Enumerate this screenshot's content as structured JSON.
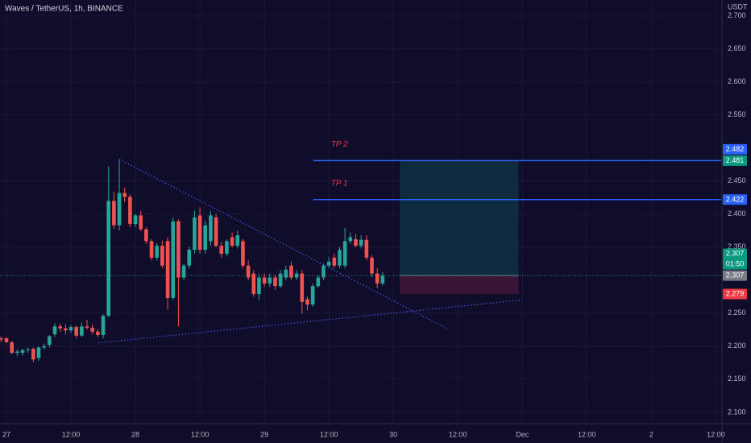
{
  "chart_data": {
    "type": "candlestick",
    "title": "Waves / TetherUS, 1h, BINANCE",
    "currency": "USDT",
    "up_color": "#26a69a",
    "down_color": "#ef5350",
    "grid": true,
    "xlim": [
      -1.2,
      133
    ],
    "ylim": [
      2.084,
      2.724
    ],
    "xticks": [
      {
        "value": 0,
        "label": "27"
      },
      {
        "value": 12,
        "label": "12:00"
      },
      {
        "value": 24,
        "label": "28"
      },
      {
        "value": 36,
        "label": "12:00"
      },
      {
        "value": 48,
        "label": "29"
      },
      {
        "value": 60,
        "label": "12:00"
      },
      {
        "value": 72,
        "label": "30"
      },
      {
        "value": 84,
        "label": "12:00"
      },
      {
        "value": 96,
        "label": "Dec"
      },
      {
        "value": 108,
        "label": "12:00"
      },
      {
        "value": 120,
        "label": "2"
      },
      {
        "value": 132,
        "label": "12:00"
      }
    ],
    "yticks": [
      {
        "value": 2.1,
        "label": "2.100"
      },
      {
        "value": 2.15,
        "label": "2.150"
      },
      {
        "value": 2.2,
        "label": "2.200"
      },
      {
        "value": 2.25,
        "label": "2.250"
      },
      {
        "value": 2.35,
        "label": "2.350"
      },
      {
        "value": 2.4,
        "label": "2.400"
      },
      {
        "value": 2.45,
        "label": "2.450"
      },
      {
        "value": 2.55,
        "label": "2.550"
      },
      {
        "value": 2.6,
        "label": "2.600"
      },
      {
        "value": 2.65,
        "label": "2.650"
      },
      {
        "value": 2.7,
        "label": "2.700"
      }
    ],
    "x": [
      -1,
      0,
      1,
      2,
      3,
      4,
      5,
      6,
      7,
      8,
      9,
      10,
      11,
      12,
      13,
      14,
      15,
      16,
      17,
      18,
      19,
      20,
      21,
      22,
      23,
      24,
      25,
      26,
      27,
      28,
      29,
      30,
      31,
      32,
      33,
      34,
      35,
      36,
      37,
      38,
      39,
      40,
      41,
      42,
      43,
      44,
      45,
      46,
      47,
      48,
      49,
      50,
      51,
      52,
      53,
      54,
      55,
      56,
      57,
      58,
      59,
      60,
      61,
      62,
      63,
      64,
      65,
      66,
      67,
      68,
      69,
      70
    ],
    "open": [
      2.212,
      2.212,
      2.206,
      2.19,
      2.19,
      2.194,
      2.196,
      2.182,
      2.198,
      2.202,
      2.218,
      2.23,
      2.227,
      2.224,
      2.229,
      2.216,
      2.23,
      2.228,
      2.222,
      2.217,
      2.246,
      2.42,
      2.383,
      2.432,
      2.426,
      2.385,
      2.398,
      2.377,
      2.359,
      2.334,
      2.352,
      2.359,
      2.273,
      2.389,
      2.304,
      2.322,
      2.346,
      2.398,
      2.346,
      2.359,
      2.395,
      2.352,
      2.34,
      2.365,
      2.352,
      2.359,
      2.322,
      2.31,
      2.279,
      2.304,
      2.295,
      2.304,
      2.291,
      2.304,
      2.322,
      2.304,
      2.31,
      2.271,
      2.263,
      2.291,
      2.304,
      2.322,
      2.334,
      2.322,
      2.322,
      2.359,
      2.362,
      2.352,
      2.361,
      2.334,
      2.31,
      2.295
    ],
    "high": [
      2.215,
      2.214,
      2.208,
      2.195,
      2.196,
      2.198,
      2.198,
      2.2,
      2.204,
      2.217,
      2.235,
      2.234,
      2.233,
      2.232,
      2.231,
      2.236,
      2.24,
      2.233,
      2.226,
      2.248,
      2.472,
      2.434,
      2.483,
      2.44,
      2.43,
      2.4,
      2.405,
      2.38,
      2.362,
      2.356,
      2.36,
      2.365,
      2.395,
      2.392,
      2.325,
      2.35,
      2.405,
      2.41,
      2.39,
      2.405,
      2.4,
      2.358,
      2.362,
      2.372,
      2.375,
      2.362,
      2.33,
      2.315,
      2.31,
      2.31,
      2.31,
      2.308,
      2.315,
      2.322,
      2.328,
      2.315,
      2.315,
      2.275,
      2.295,
      2.308,
      2.325,
      2.335,
      2.34,
      2.35,
      2.379,
      2.372,
      2.37,
      2.368,
      2.368,
      2.338,
      2.318,
      2.312
    ],
    "low": [
      2.206,
      2.205,
      2.188,
      2.185,
      2.186,
      2.19,
      2.176,
      2.178,
      2.195,
      2.198,
      2.214,
      2.222,
      2.218,
      2.22,
      2.212,
      2.214,
      2.225,
      2.218,
      2.214,
      2.212,
      2.244,
      2.378,
      2.375,
      2.418,
      2.38,
      2.38,
      2.374,
      2.355,
      2.33,
      2.33,
      2.318,
      2.255,
      2.27,
      2.23,
      2.3,
      2.318,
      2.34,
      2.34,
      2.34,
      2.352,
      2.35,
      2.334,
      2.336,
      2.35,
      2.348,
      2.318,
      2.3,
      2.275,
      2.27,
      2.29,
      2.29,
      2.285,
      2.288,
      2.3,
      2.3,
      2.3,
      2.249,
      2.255,
      2.26,
      2.288,
      2.3,
      2.318,
      2.318,
      2.318,
      2.318,
      2.355,
      2.35,
      2.348,
      2.33,
      2.305,
      2.288,
      2.292
    ],
    "close": [
      2.21,
      2.206,
      2.19,
      2.192,
      2.194,
      2.195,
      2.18,
      2.198,
      2.2,
      2.215,
      2.23,
      2.227,
      2.224,
      2.229,
      2.216,
      2.23,
      2.228,
      2.222,
      2.217,
      2.246,
      2.42,
      2.383,
      2.432,
      2.426,
      2.385,
      2.398,
      2.377,
      2.359,
      2.334,
      2.352,
      2.322,
      2.273,
      2.389,
      2.304,
      2.322,
      2.346,
      2.395,
      2.346,
      2.383,
      2.398,
      2.352,
      2.34,
      2.359,
      2.352,
      2.368,
      2.322,
      2.304,
      2.279,
      2.304,
      2.295,
      2.304,
      2.291,
      2.31,
      2.316,
      2.304,
      2.31,
      2.267,
      2.263,
      2.291,
      2.304,
      2.322,
      2.328,
      2.322,
      2.346,
      2.359,
      2.365,
      2.352,
      2.361,
      2.334,
      2.31,
      2.295,
      2.307
    ],
    "trendlines": [
      {
        "x": [
          21,
          82
        ],
        "y": [
          2.483,
          2.2268
        ],
        "color": "#3f51d9"
      },
      {
        "x": [
          17.1,
          95.85
        ],
        "y": [
          2.205,
          2.27
        ],
        "color": "#3f51d9"
      }
    ],
    "tp_lines": [
      {
        "label": "TP 2",
        "value": 2.481,
        "x_start": 57.1,
        "color": "#2962ff",
        "text_color": "#f23645"
      },
      {
        "label": "TP 1",
        "value": 2.422,
        "x_start": 57.1,
        "color": "#2962ff",
        "text_color": "#f23645"
      }
    ],
    "position": {
      "x_start": 73.2,
      "x_end": 95.3,
      "entry": 2.307,
      "target": 2.481,
      "stop": 2.279,
      "target_color": "#0f2b3f",
      "stop_color": "#3a1436"
    },
    "price_labels": [
      {
        "value": 2.279,
        "label": "2.279",
        "color": "#f23645"
      },
      {
        "value": 2.307,
        "label": "2.307",
        "color": "#787b86"
      },
      {
        "value": 2.307,
        "label": "2.307",
        "countdown": "01:50",
        "color": "#089981"
      },
      {
        "value": 2.422,
        "label": "2.422",
        "color": "#2962ff"
      },
      {
        "value": 2.481,
        "label": "2.481",
        "color": "#089981"
      },
      {
        "value": 2.482,
        "label": "2.482",
        "color": "#2962ff"
      }
    ]
  }
}
